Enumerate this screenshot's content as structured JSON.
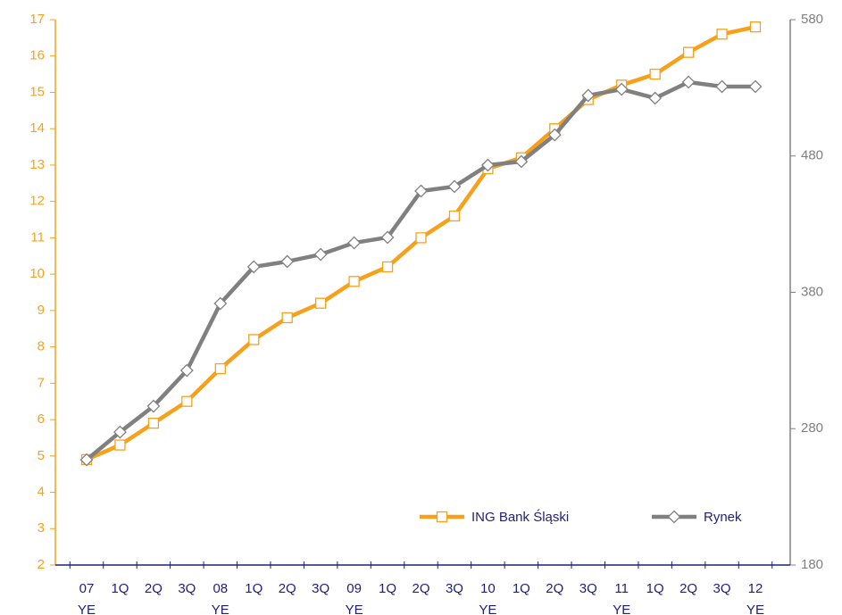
{
  "chart_data": {
    "type": "line",
    "categories": [
      "07 YE",
      "1Q",
      "2Q",
      "3Q",
      "08 YE",
      "1Q",
      "2Q",
      "3Q",
      "09 YE",
      "1Q",
      "2Q",
      "3Q",
      "10 YE",
      "1Q",
      "2Q",
      "3Q",
      "11 YE",
      "1Q",
      "2Q",
      "3Q",
      "12 YE"
    ],
    "ylim": [
      2,
      17
    ],
    "yticks": [
      2,
      3,
      4,
      5,
      6,
      7,
      8,
      9,
      10,
      11,
      12,
      13,
      14,
      15,
      16,
      17
    ],
    "y2lim": [
      180,
      580
    ],
    "y2ticks": [
      180,
      280,
      380,
      480,
      580
    ],
    "legend": "lower right",
    "series": [
      {
        "name": "ING Bank Śląski",
        "color": "#f7a11a",
        "marker": "square",
        "values": [
          4.9,
          5.3,
          5.9,
          6.5,
          7.4,
          8.2,
          8.8,
          9.2,
          9.8,
          10.2,
          11.0,
          11.6,
          12.9,
          13.2,
          14.0,
          14.8,
          15.2,
          15.5,
          16.1,
          16.6,
          16.8
        ]
      },
      {
        "name": "Rynek",
        "color": "#808080",
        "marker": "diamond",
        "axis": "y2",
        "values": [
          257.2,
          277.5,
          296.5,
          322.7,
          371.8,
          398.7,
          402.6,
          407.8,
          416.3,
          420.3,
          454.3,
          457.6,
          473.3,
          475.9,
          495.5,
          524.4,
          528.9,
          522.4,
          534.2,
          530.9,
          530.9
        ]
      }
    ]
  }
}
